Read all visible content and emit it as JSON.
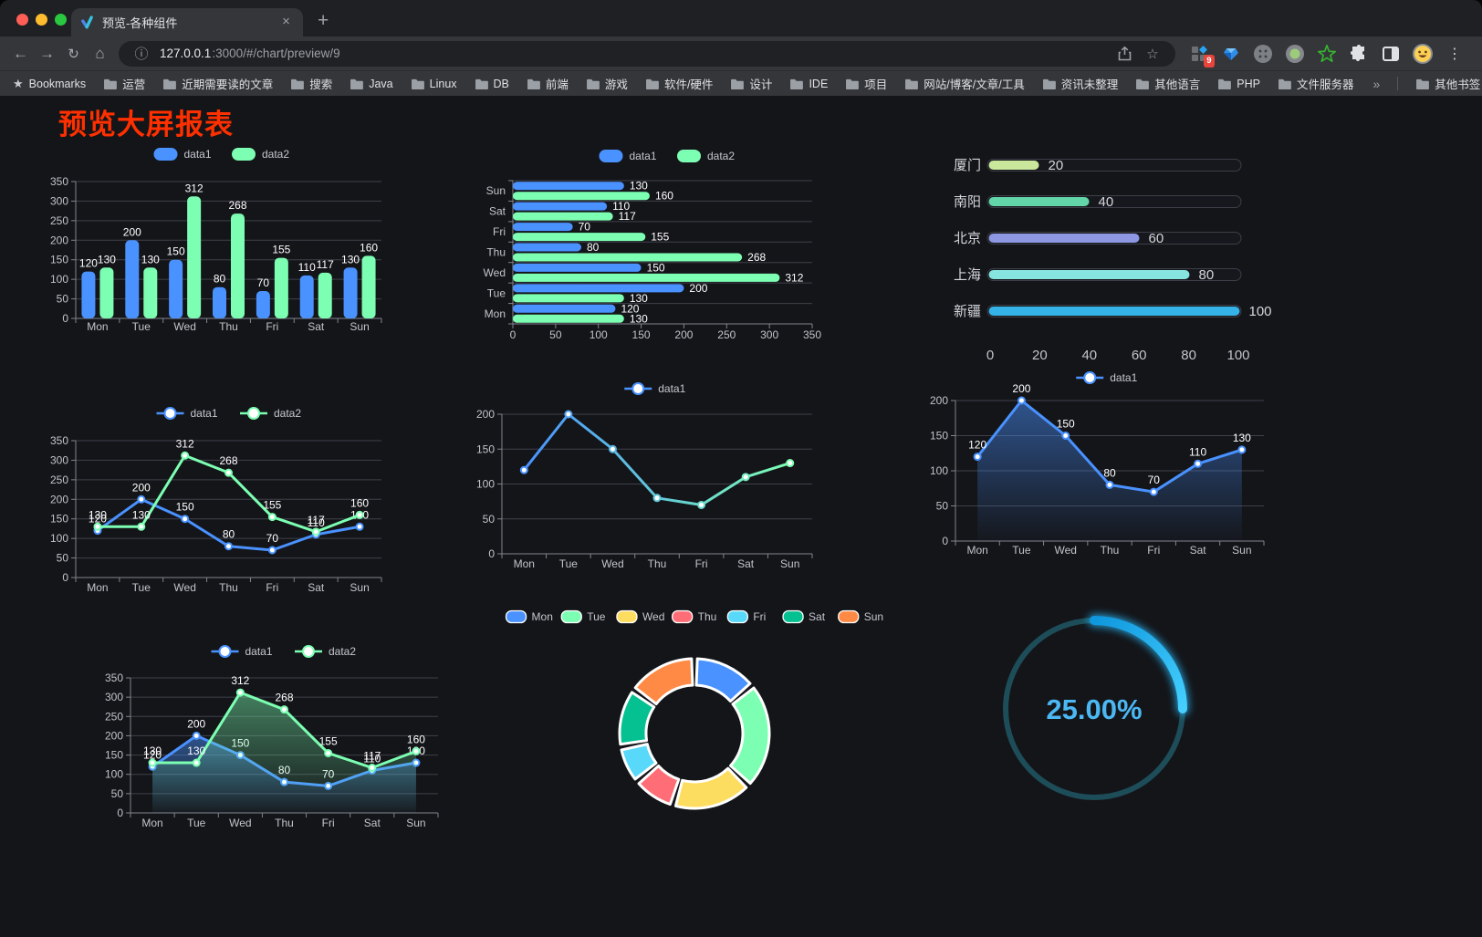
{
  "browser": {
    "tab_title": "预览-各种组件",
    "url_host": "127.0.0.1",
    "url_rest": ":3000/#/chart/preview/9",
    "bookmarks_label": "Bookmarks",
    "bookmark_folders": [
      "运营",
      "近期需要读的文章",
      "搜索",
      "Java",
      "Linux",
      "DB",
      "前端",
      "游戏",
      "软件/硬件",
      "设计",
      "IDE",
      "项目",
      "网站/博客/文章/工具",
      "资讯未整理",
      "其他语言",
      "PHP",
      "文件服务器"
    ],
    "other_bookmarks": "其他书签",
    "extension_badge": "9",
    "icons": {
      "back": "←",
      "forward": "→",
      "reload": "↻",
      "home": "⌂",
      "info": "ⓘ",
      "star": "☆",
      "bookmarks_star": "★",
      "close": "×",
      "new_tab": "+",
      "overflow": "»",
      "menu": "⋮"
    }
  },
  "page": {
    "title": "预览大屏报表",
    "title_color": "#ff3000",
    "background": "#141519"
  },
  "palette": {
    "blue": "#4992ff",
    "green": "#7cffb2",
    "grid_line": "#3f404a",
    "axis_line": "#82848f",
    "axis_label": "#c3c4cc",
    "value_label": "#ffffff",
    "legend_text": "#c6c7cf"
  },
  "chart_data": [
    {
      "id": "bar-grouped",
      "type": "bar",
      "categories": [
        "Mon",
        "Tue",
        "Wed",
        "Thu",
        "Fri",
        "Sat",
        "Sun"
      ],
      "series": [
        {
          "name": "data1",
          "color": "#4992ff",
          "values": [
            120,
            200,
            150,
            80,
            70,
            110,
            130
          ]
        },
        {
          "name": "data2",
          "color": "#7cffb2",
          "values": [
            130,
            130,
            312,
            268,
            155,
            117,
            160
          ]
        }
      ],
      "ylim": [
        0,
        350
      ],
      "ytick_step": 50,
      "show_labels": true,
      "legend_position": "top"
    },
    {
      "id": "bar-horizontal",
      "type": "bar-horizontal",
      "categories": [
        "Mon",
        "Tue",
        "Wed",
        "Thu",
        "Fri",
        "Sat",
        "Sun"
      ],
      "series": [
        {
          "name": "data1",
          "color": "#4992ff",
          "values": [
            120,
            200,
            150,
            80,
            70,
            110,
            130
          ]
        },
        {
          "name": "data2",
          "color": "#7cffb2",
          "values": [
            130,
            130,
            312,
            268,
            155,
            117,
            160
          ]
        }
      ],
      "xlim": [
        0,
        350
      ],
      "xtick_step": 50,
      "show_labels": true,
      "legend_position": "top"
    },
    {
      "id": "city-progress",
      "type": "progress-bars",
      "max": 100,
      "items": [
        {
          "label": "厦门",
          "value": 20,
          "color": "#c9e89b"
        },
        {
          "label": "南阳",
          "value": 40,
          "color": "#62d6a8"
        },
        {
          "label": "北京",
          "value": 60,
          "color": "#8d97e2"
        },
        {
          "label": "上海",
          "value": 80,
          "color": "#86e5de"
        },
        {
          "label": "新疆",
          "value": 100,
          "color": "#35b3e8"
        }
      ],
      "axis_ticks": [
        0,
        20,
        40,
        60,
        80,
        100
      ]
    },
    {
      "id": "line-two-series",
      "type": "line",
      "categories": [
        "Mon",
        "Tue",
        "Wed",
        "Thu",
        "Fri",
        "Sat",
        "Sun"
      ],
      "series": [
        {
          "name": "data1",
          "color": "#4992ff",
          "values": [
            120,
            200,
            150,
            80,
            70,
            110,
            130
          ]
        },
        {
          "name": "data2",
          "color": "#7cffb2",
          "values": [
            130,
            130,
            312,
            268,
            155,
            117,
            160
          ]
        }
      ],
      "ylim": [
        0,
        350
      ],
      "ytick_step": 50,
      "show_labels": true
    },
    {
      "id": "line-gradient",
      "type": "line",
      "categories": [
        "Mon",
        "Tue",
        "Wed",
        "Thu",
        "Fri",
        "Sat",
        "Sun"
      ],
      "series": [
        {
          "name": "data1",
          "color": "#4992ff",
          "gradient": [
            "#4992ff",
            "#7cffb2"
          ],
          "values": [
            120,
            200,
            150,
            80,
            70,
            110,
            130
          ]
        }
      ],
      "ylim": [
        0,
        200
      ],
      "ytick_step": 50,
      "show_labels": false
    },
    {
      "id": "area-single",
      "type": "line",
      "categories": [
        "Mon",
        "Tue",
        "Wed",
        "Thu",
        "Fri",
        "Sat",
        "Sun"
      ],
      "series": [
        {
          "name": "data1",
          "color": "#4992ff",
          "area": true,
          "values": [
            120,
            200,
            150,
            80,
            70,
            110,
            130
          ]
        }
      ],
      "ylim": [
        0,
        200
      ],
      "ytick_step": 50,
      "show_labels": true
    },
    {
      "id": "area-two-series",
      "type": "line",
      "categories": [
        "Mon",
        "Tue",
        "Wed",
        "Thu",
        "Fri",
        "Sat",
        "Sun"
      ],
      "series": [
        {
          "name": "data1",
          "color": "#4992ff",
          "area": true,
          "values": [
            120,
            200,
            150,
            80,
            70,
            110,
            130
          ]
        },
        {
          "name": "data2",
          "color": "#7cffb2",
          "area": true,
          "values": [
            130,
            130,
            312,
            268,
            155,
            117,
            160
          ]
        }
      ],
      "ylim": [
        0,
        350
      ],
      "ytick_step": 50,
      "show_labels": true
    },
    {
      "id": "donut",
      "type": "pie",
      "categories": [
        "Mon",
        "Tue",
        "Wed",
        "Thu",
        "Fri",
        "Sat",
        "Sun"
      ],
      "values": [
        120,
        200,
        150,
        80,
        70,
        110,
        130
      ],
      "colors": [
        "#4992ff",
        "#7cffb2",
        "#fddd60",
        "#ff6e76",
        "#58d9f9",
        "#05c091",
        "#ff8a45"
      ],
      "border_color": "#ffffff"
    },
    {
      "id": "ring-progress",
      "type": "gauge-progress",
      "value_text": "25.00%",
      "percent": 25,
      "arc_color": "#27b5f5",
      "track_color": "#1d4d59",
      "text_color": "#4bb7f3"
    }
  ]
}
